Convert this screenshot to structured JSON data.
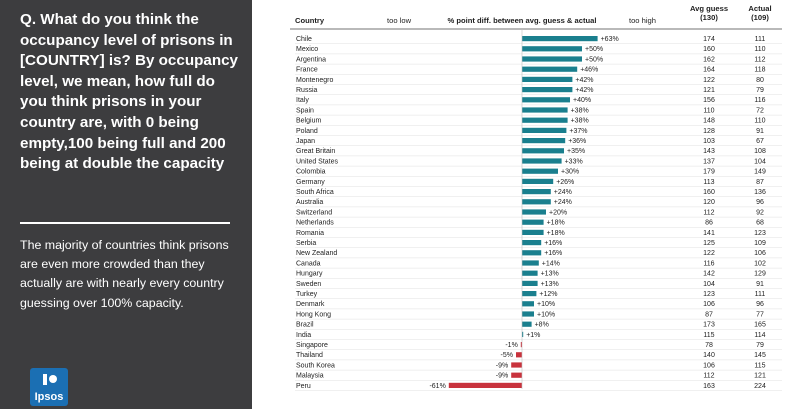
{
  "left_panel": {
    "question": "Q. What do you think the occupancy level of prisons in [COUNTRY] is? By occupancy level, we mean, how full do you think prisons in your country are, with 0 being empty,100 being full and 200 being at double the capacity",
    "summary": "The majority of countries think prisons are even more crowded than they actually are with nearly every country guessing over 100% capacity.",
    "logo_text": "Ipsos"
  },
  "colors": {
    "positive": "#1a7f8e",
    "negative": "#c8323c",
    "too_low": "#c8323c",
    "too_high": "#1a7f8e",
    "panel": "#3d3d3f",
    "logo": "#1b6fb3"
  },
  "chart_data": {
    "type": "bar",
    "orientation": "horizontal",
    "title": "% point diff. between avg. guess & actual",
    "header_country": "Country",
    "label_too_low": "too low",
    "label_too_high": "too high",
    "col_guess_label_line1": "Avg guess",
    "col_guess_label_line2": "(130)",
    "col_actual_label_line1": "Actual",
    "col_actual_label_line2": "(109)",
    "categories": [
      "Chile",
      "Mexico",
      "Argentina",
      "France",
      "Montenegro",
      "Russia",
      "Italy",
      "Spain",
      "Belgium",
      "Poland",
      "Japan",
      "Great Britain",
      "United States",
      "Colombia",
      "Germany",
      "South Africa",
      "Australia",
      "Switzerland",
      "Netherlands",
      "Romania",
      "Serbia",
      "New Zealand",
      "Canada",
      "Hungary",
      "Sweden",
      "Turkey",
      "Denmark",
      "Hong Kong",
      "Brazil",
      "India",
      "Singapore",
      "Thailand",
      "South Korea",
      "Malaysia",
      "Peru"
    ],
    "values": [
      63,
      50,
      50,
      46,
      42,
      42,
      40,
      38,
      38,
      37,
      36,
      35,
      33,
      30,
      26,
      24,
      24,
      20,
      18,
      18,
      16,
      16,
      14,
      13,
      13,
      12,
      10,
      10,
      8,
      1,
      -1,
      -5,
      -9,
      -9,
      -61
    ],
    "value_labels": [
      "+63%",
      "+50%",
      "+50%",
      "+46%",
      "+42%",
      "+42%",
      "+40%",
      "+38%",
      "+38%",
      "+37%",
      "+36%",
      "+35%",
      "+33%",
      "+30%",
      "+26%",
      "+24%",
      "+24%",
      "+20%",
      "+18%",
      "+18%",
      "+16%",
      "+16%",
      "+14%",
      "+13%",
      "+13%",
      "+12%",
      "+10%",
      "+10%",
      "+8%",
      "+1%",
      "-1%",
      "-5%",
      "-9%",
      "-9%",
      "-61%"
    ],
    "avg_guess": [
      "174",
      "160",
      "162",
      "164",
      "122",
      "121",
      "156",
      "110",
      "148",
      "128",
      "103",
      "143",
      "137",
      "179",
      "113",
      "160",
      "120",
      "112",
      "86",
      "141",
      "125",
      "122",
      "116",
      "142",
      "104",
      "123",
      "106",
      "87",
      "173",
      "115",
      "78",
      "140",
      "106",
      "112",
      "163"
    ],
    "actual": [
      "111",
      "110",
      "112",
      "118",
      "80",
      "79",
      "116",
      "72",
      "110",
      "91",
      "67",
      "108",
      "104",
      "149",
      "87",
      "136",
      "96",
      "92",
      "68",
      "123",
      "109",
      "106",
      "102",
      "129",
      "91",
      "111",
      "96",
      "77",
      "165",
      "114",
      "79",
      "145",
      "115",
      "121",
      "224"
    ]
  }
}
